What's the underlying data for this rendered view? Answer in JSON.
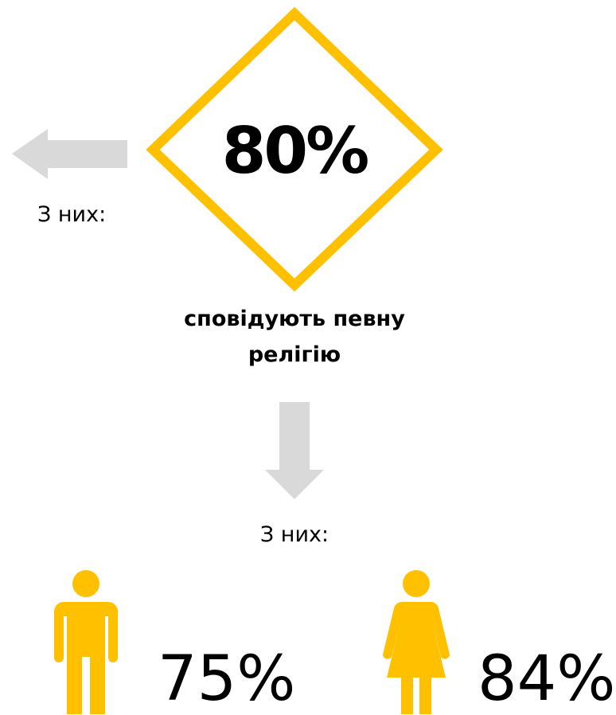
{
  "main": {
    "value": "80%",
    "caption": "сповідують певну релігію"
  },
  "side_note": "З них:",
  "down_note": "З них:",
  "groups": [
    {
      "value": "75%"
    },
    {
      "value": "84%"
    }
  ]
}
